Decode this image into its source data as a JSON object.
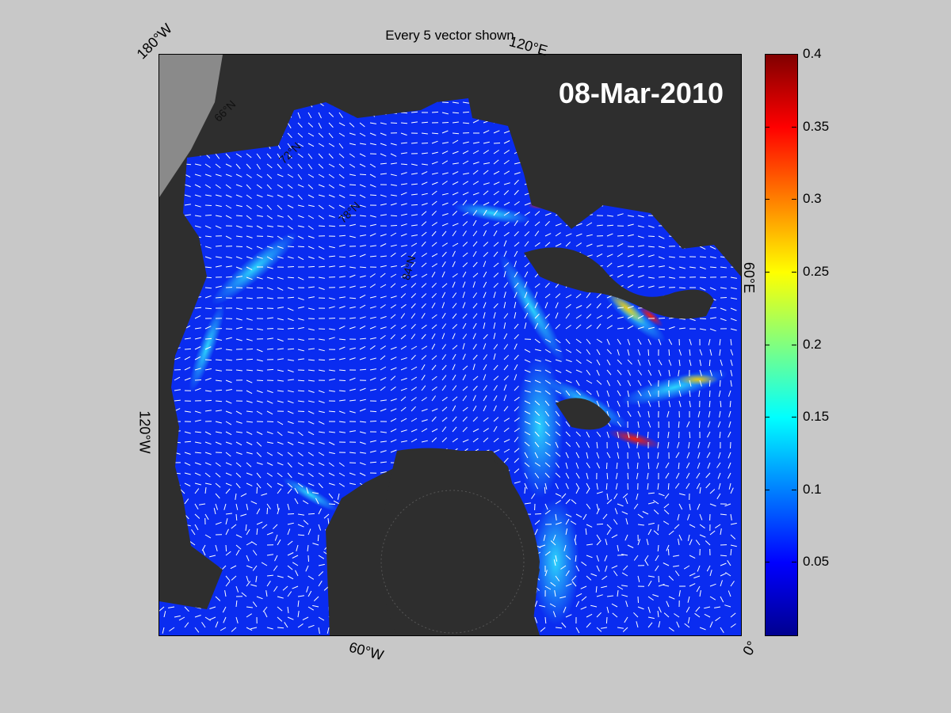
{
  "title": "Every 5 vector shown",
  "date_label": "08-Mar-2010",
  "coord_labels": {
    "top_left": "180°W",
    "top_right": "120°E",
    "right": "60°E",
    "left": "120°W",
    "bottom": "60°W",
    "bottom_right": "0°",
    "lat_1": "66°N",
    "lat_2": "72°N",
    "lat_3": "78°N",
    "lat_4": "84°N"
  },
  "colorbar": {
    "min": 0,
    "max": 0.4,
    "colormap": "jet",
    "ticks": [
      "0.05",
      "0.1",
      "0.15",
      "0.2",
      "0.25",
      "0.3",
      "0.35",
      "0.4"
    ]
  },
  "colors": {
    "land": "#2e2e2e",
    "water_base": "#0a2cf0",
    "vectors": "#ffffff",
    "background": "#c8c8c8"
  }
}
